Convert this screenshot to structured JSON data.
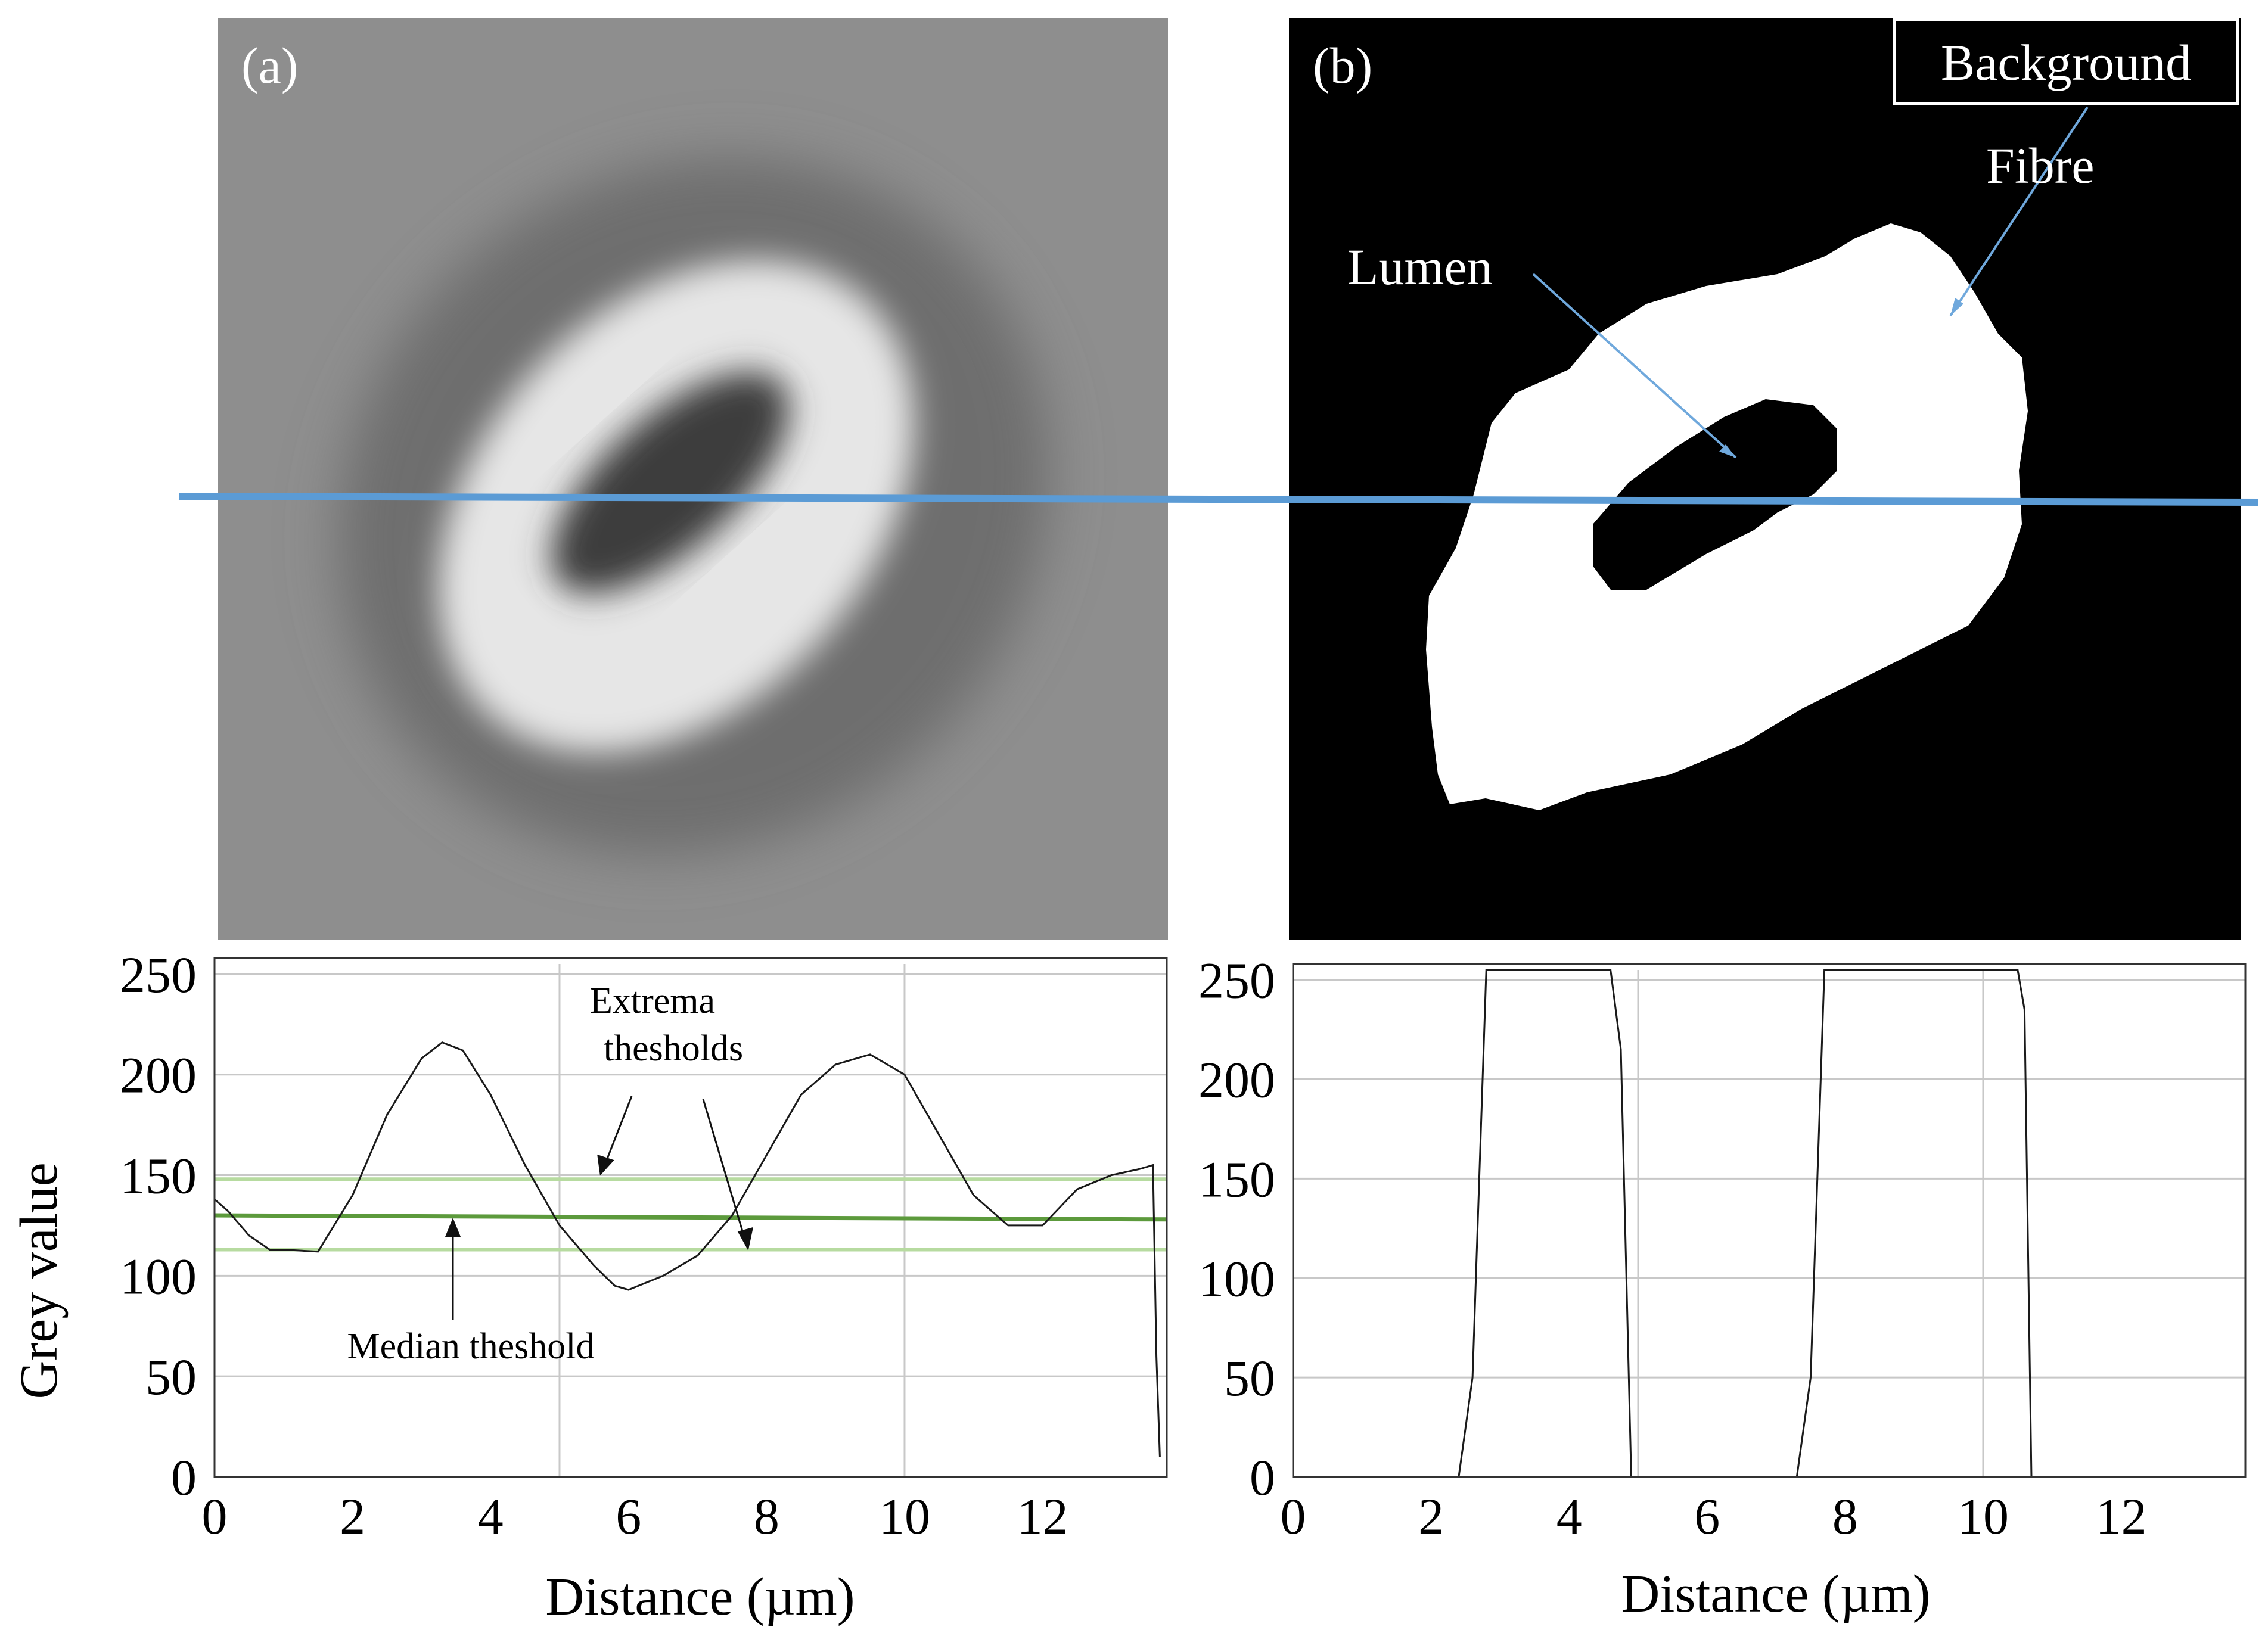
{
  "panels": {
    "a": {
      "label": "(a)"
    },
    "b": {
      "label": "(b)",
      "background_label": "Background",
      "fibre_label": "Fibre",
      "lumen_label": "Lumen"
    }
  },
  "colors": {
    "scan_line": "#5b9bd5",
    "arrow": "#6fa8dc",
    "median": "#5c9a3c",
    "extrema": "#b7dba0",
    "grid": "#c8c8c8"
  },
  "chart_data": [
    {
      "type": "line",
      "xlabel": "Distance (µm)",
      "ylabel": "Grey value",
      "xlim": [
        0,
        13.8
      ],
      "ylim": [
        0,
        255
      ],
      "xticks": [
        0,
        2,
        4,
        6,
        8,
        10,
        12
      ],
      "yticks": [
        0,
        50,
        100,
        150,
        200,
        250
      ],
      "grid": true,
      "series": [
        {
          "x": [
            0,
            0.2,
            0.5,
            0.8,
            1.0,
            1.5,
            2.0,
            2.5,
            3.0,
            3.3,
            3.6,
            4.0,
            4.5,
            5.0,
            5.5,
            5.8,
            6.0,
            6.5,
            7.0,
            7.5,
            8.0,
            8.5,
            9.0,
            9.5,
            10.0,
            10.5,
            11.0,
            11.5,
            12.0,
            12.5,
            13.0,
            13.4,
            13.6,
            13.65,
            13.7
          ],
          "y": [
            138,
            132,
            120,
            113,
            113,
            112,
            140,
            180,
            208,
            216,
            212,
            190,
            155,
            125,
            105,
            95,
            93,
            100,
            110,
            130,
            160,
            190,
            205,
            210,
            200,
            170,
            140,
            125,
            125,
            143,
            150,
            153,
            155,
            60,
            10
          ]
        }
      ],
      "threshold_lines": [
        {
          "name": "median",
          "y_start": 130,
          "y_end": 128
        },
        {
          "name": "extrema_upper",
          "y_start": 148,
          "y_end": 148
        },
        {
          "name": "extrema_lower",
          "y_start": 113,
          "y_end": 113
        }
      ],
      "annotations": [
        {
          "text_line1": "Extrema",
          "text_line2": "thesholds"
        },
        {
          "text": "Median theshold"
        }
      ]
    },
    {
      "type": "line",
      "xlabel": "Distance (µm)",
      "ylabel": "",
      "xlim": [
        0,
        13.8
      ],
      "ylim": [
        0,
        255
      ],
      "xticks": [
        0,
        2,
        4,
        6,
        8,
        10,
        12
      ],
      "yticks": [
        0,
        50,
        100,
        150,
        200,
        250
      ],
      "grid": true,
      "series": [
        {
          "x": [
            2.4,
            2.6,
            2.8,
            4.6,
            4.75,
            4.9,
            7.3,
            7.5,
            7.7,
            10.5,
            10.6,
            10.7
          ],
          "y": [
            0,
            50,
            255,
            255,
            215,
            0,
            0,
            50,
            255,
            255,
            235,
            0
          ]
        }
      ]
    }
  ]
}
